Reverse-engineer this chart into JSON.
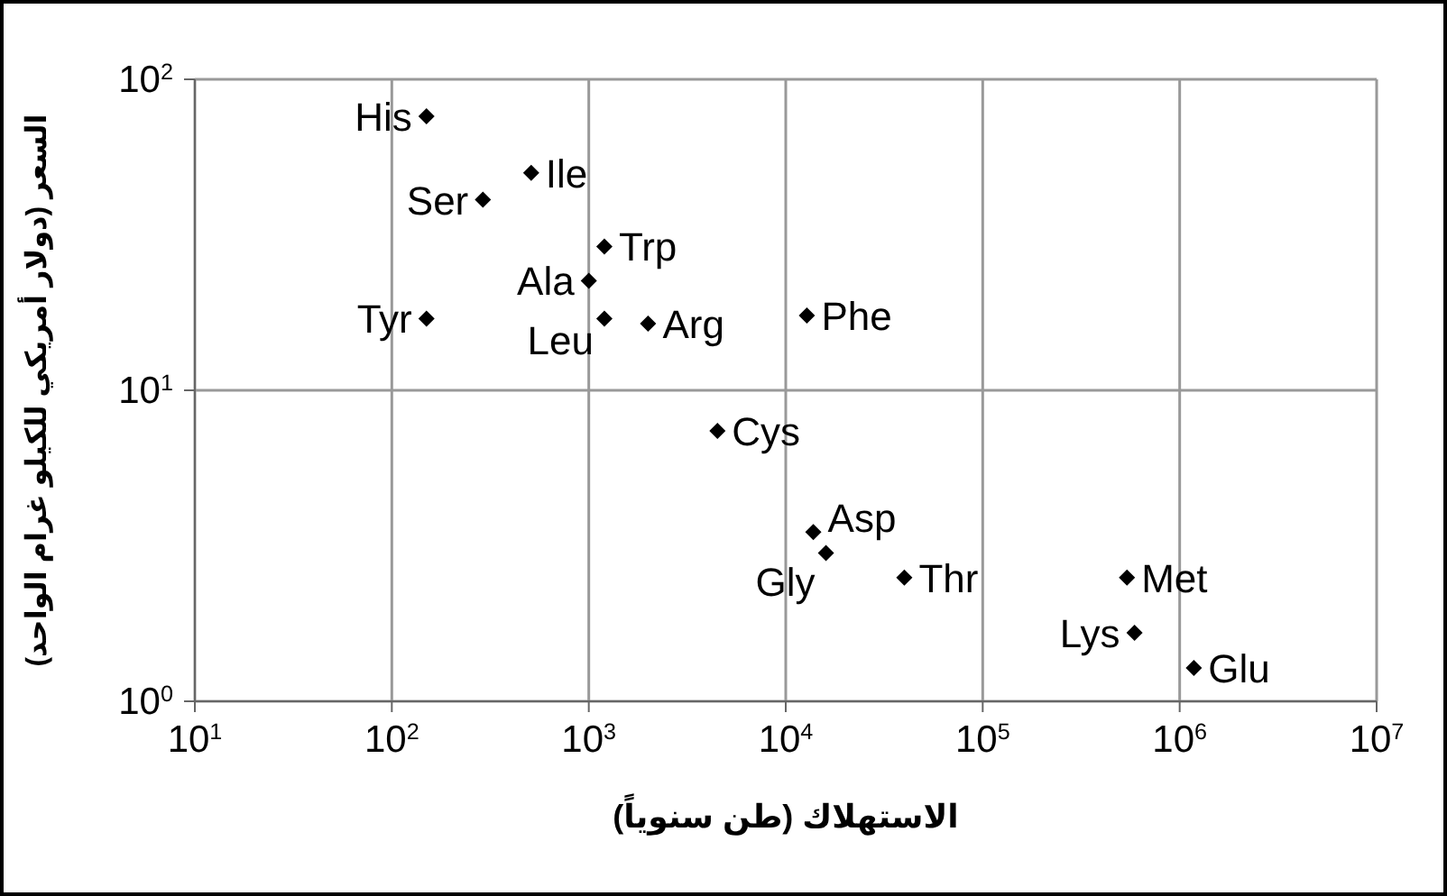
{
  "chart_data": {
    "type": "scatter",
    "xlabel": "الاستهلاك (طن سنوياً)",
    "ylabel": "السعر (دولار أمريكي للكيلو غرام الواحد)",
    "x": [
      150,
      510,
      290,
      1200,
      1000,
      150,
      1200,
      2000,
      12800,
      4500,
      13800,
      16000,
      40000,
      540000,
      590000,
      1180000
    ],
    "series": [
      {
        "color": "#000000",
        "values": [
          76,
          50,
          41,
          29,
          22.5,
          17,
          17,
          16.4,
          17.4,
          7.4,
          3.5,
          3,
          2.5,
          2.5,
          1.66,
          1.28
        ]
      }
    ],
    "annotations": [
      {
        "text": "His",
        "x": 150,
        "y": 76
      },
      {
        "text": "Ile",
        "x": 510,
        "y": 50
      },
      {
        "text": "Ser",
        "x": 290,
        "y": 41
      },
      {
        "text": "Trp",
        "x": 1200,
        "y": 29
      },
      {
        "text": "Ala",
        "x": 1000,
        "y": 22.5
      },
      {
        "text": "Tyr",
        "x": 150,
        "y": 17
      },
      {
        "text": "Leu",
        "x": 1200,
        "y": 17
      },
      {
        "text": "Arg",
        "x": 2000,
        "y": 16.4
      },
      {
        "text": "Phe",
        "x": 12800,
        "y": 17.4
      },
      {
        "text": "Cys",
        "x": 4500,
        "y": 7.4
      },
      {
        "text": "Asp",
        "x": 13800,
        "y": 3.5
      },
      {
        "text": "Gly",
        "x": 16000,
        "y": 3
      },
      {
        "text": "Thr",
        "x": 40000,
        "y": 2.5
      },
      {
        "text": "Met",
        "x": 540000,
        "y": 2.5
      },
      {
        "text": "Lys",
        "x": 590000,
        "y": 1.66
      },
      {
        "text": "Glu",
        "x": 1180000,
        "y": 1.28
      }
    ],
    "xlim": [
      10,
      10000000
    ],
    "xticks": [
      {
        "value": 10,
        "label": "10$^{1}$"
      },
      {
        "value": 100,
        "label": "10$^{2}$"
      },
      {
        "value": 1000,
        "label": "10$^{3}$"
      },
      {
        "value": 10000,
        "label": "10$^{4}$"
      },
      {
        "value": 100000,
        "label": "10$^{5}$"
      },
      {
        "value": 1000000,
        "label": "10$^{6}$"
      },
      {
        "value": 10000000,
        "label": "10$^{7}$"
      }
    ],
    "ylim": [
      1,
      100
    ],
    "yticks": [
      {
        "value": 1,
        "label": "10$^{0}$"
      },
      {
        "value": 10,
        "label": "10$^{1}$"
      },
      {
        "value": 100,
        "label": "10$^{2}$"
      }
    ],
    "log": "xy",
    "grid": true,
    "marker": "diamond"
  }
}
